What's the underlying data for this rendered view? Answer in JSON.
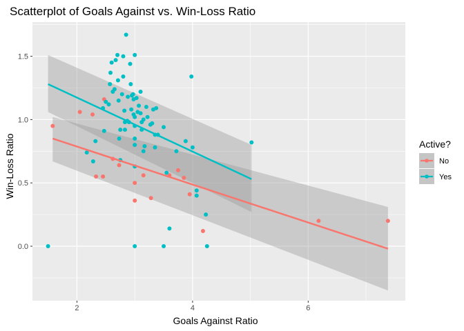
{
  "chart_data": {
    "type": "scatter",
    "title": "Scatterplot of Goals Against vs. Win-Loss Ratio",
    "xlabel": "Goals Against Ratio",
    "ylabel": "Win-Loss Ratio",
    "xlim": [
      1.23,
      7.68
    ],
    "ylim": [
      -0.43,
      1.77
    ],
    "x_ticks": [
      2,
      4,
      6
    ],
    "y_ticks": [
      0.0,
      0.5,
      1.0,
      1.5
    ],
    "x_tick_labels": [
      "2",
      "4",
      "6"
    ],
    "y_tick_labels": [
      "0.0",
      "0.5",
      "1.0",
      "1.5"
    ],
    "grid": true,
    "legend": {
      "title": "Active?",
      "position": "right",
      "entries": [
        "No",
        "Yes"
      ]
    },
    "series": [
      {
        "name": "No",
        "color": "#F8766D",
        "points": [
          [
            1.58,
            0.95
          ],
          [
            2.05,
            1.06
          ],
          [
            2.27,
            1.04
          ],
          [
            2.33,
            0.55
          ],
          [
            2.45,
            0.55
          ],
          [
            2.47,
            1.16
          ],
          [
            2.62,
            0.69
          ],
          [
            2.73,
            0.64
          ],
          [
            3.0,
            0.5
          ],
          [
            3.0,
            0.36
          ],
          [
            3.15,
            0.56
          ],
          [
            3.28,
            0.38
          ],
          [
            3.6,
            0.56
          ],
          [
            3.75,
            0.6
          ],
          [
            3.85,
            0.54
          ],
          [
            3.95,
            0.41
          ],
          [
            4.18,
            0.12
          ],
          [
            6.18,
            0.2
          ],
          [
            7.38,
            0.2
          ]
        ],
        "fit": {
          "x": [
            1.58,
            7.38
          ],
          "y": [
            0.85,
            -0.02
          ]
        },
        "band": {
          "x": [
            1.58,
            7.38
          ],
          "upper": [
            1.02,
            0.31
          ],
          "lower": [
            0.67,
            -0.35
          ]
        }
      },
      {
        "name": "Yes",
        "color": "#00BFC4",
        "points": [
          [
            1.5,
            0.0
          ],
          [
            2.17,
            0.74
          ],
          [
            2.28,
            0.67
          ],
          [
            2.32,
            0.83
          ],
          [
            2.45,
            1.09
          ],
          [
            2.47,
            0.91
          ],
          [
            2.5,
            1.14
          ],
          [
            2.55,
            1.12
          ],
          [
            2.57,
            1.28
          ],
          [
            2.58,
            1.37
          ],
          [
            2.6,
            1.45
          ],
          [
            2.62,
            1.22
          ],
          [
            2.65,
            1.24
          ],
          [
            2.67,
            1.47
          ],
          [
            2.7,
            1.51
          ],
          [
            2.71,
            1.31
          ],
          [
            2.72,
            1.15
          ],
          [
            2.73,
            0.85
          ],
          [
            2.75,
            0.68
          ],
          [
            2.75,
            0.92
          ],
          [
            2.78,
            1.2
          ],
          [
            2.8,
            1.34
          ],
          [
            2.8,
            1.5
          ],
          [
            2.82,
            1.07
          ],
          [
            2.83,
            0.98
          ],
          [
            2.83,
            0.92
          ],
          [
            2.85,
            1.67
          ],
          [
            2.87,
            0.99
          ],
          [
            2.88,
            1.18
          ],
          [
            2.9,
            0.98
          ],
          [
            2.92,
            1.44
          ],
          [
            2.93,
            1.28
          ],
          [
            2.94,
            1.08
          ],
          [
            2.95,
            1.19
          ],
          [
            2.97,
            1.2
          ],
          [
            2.98,
            1.16
          ],
          [
            2.98,
            1.04
          ],
          [
            3.0,
            1.51
          ],
          [
            3.0,
            1.02
          ],
          [
            3.0,
            0.95
          ],
          [
            3.0,
            0.8
          ],
          [
            3.0,
            0.85
          ],
          [
            3.0,
            0.63
          ],
          [
            3.0,
            0.0
          ],
          [
            3.03,
            1.17
          ],
          [
            3.05,
            1.06
          ],
          [
            3.07,
            1.11
          ],
          [
            3.1,
            1.22
          ],
          [
            3.1,
            1.05
          ],
          [
            3.12,
            0.98
          ],
          [
            3.12,
            0.92
          ],
          [
            3.15,
            1.0
          ],
          [
            3.15,
            0.75
          ],
          [
            3.17,
            0.79
          ],
          [
            3.2,
            1.1
          ],
          [
            3.22,
            1.02
          ],
          [
            3.27,
            0.96
          ],
          [
            3.3,
            0.97
          ],
          [
            3.32,
            1.08
          ],
          [
            3.35,
            0.88
          ],
          [
            3.35,
            0.78
          ],
          [
            3.37,
            1.09
          ],
          [
            3.4,
            0.88
          ],
          [
            3.5,
            0.94
          ],
          [
            3.5,
            0.0
          ],
          [
            3.55,
            0.58
          ],
          [
            3.6,
            0.14
          ],
          [
            3.72,
            0.75
          ],
          [
            3.88,
            0.83
          ],
          [
            3.98,
            1.34
          ],
          [
            4.0,
            0.78
          ],
          [
            4.07,
            0.44
          ],
          [
            4.07,
            0.4
          ],
          [
            4.23,
            0.25
          ],
          [
            4.25,
            0.0
          ],
          [
            5.02,
            0.82
          ]
        ],
        "fit": {
          "x": [
            1.5,
            5.02
          ],
          "y": [
            1.28,
            0.53
          ]
        },
        "band": {
          "x": [
            1.5,
            5.02
          ],
          "upper": [
            1.51,
            0.8
          ],
          "lower": [
            1.06,
            0.27
          ]
        }
      }
    ]
  }
}
